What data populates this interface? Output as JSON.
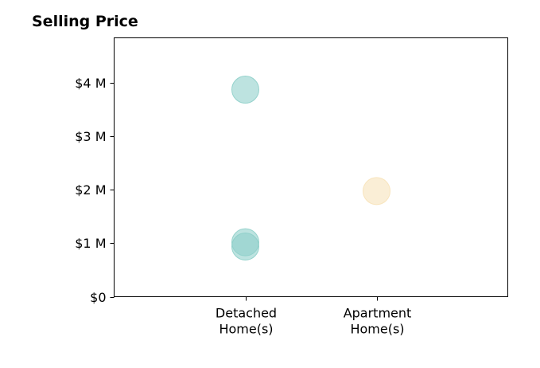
{
  "chart_data": {
    "type": "scatter",
    "title": "Selling Price",
    "xlabel": "",
    "ylabel": "",
    "categories": [
      "Detached Home(s)",
      "Apartment Home(s)"
    ],
    "category_label_lines": [
      [
        "Detached",
        "Home(s)"
      ],
      [
        "Apartment",
        "Home(s)"
      ]
    ],
    "ylim": [
      0,
      4850000
    ],
    "yticks": [
      0,
      1000000,
      2000000,
      3000000,
      4000000
    ],
    "ytick_labels": [
      "$0",
      "$1 M",
      "$2 M",
      "$3 M",
      "$4 M"
    ],
    "grid": false,
    "points": [
      {
        "category": "Detached Home(s)",
        "value": 3880000,
        "color": "#8ecfc9"
      },
      {
        "category": "Detached Home(s)",
        "value": 1020000,
        "color": "#8ecfc9"
      },
      {
        "category": "Detached Home(s)",
        "value": 940000,
        "color": "#8ecfc9"
      },
      {
        "category": "Apartment Home(s)",
        "value": 1980000,
        "color": "#f7e2b8"
      }
    ]
  }
}
